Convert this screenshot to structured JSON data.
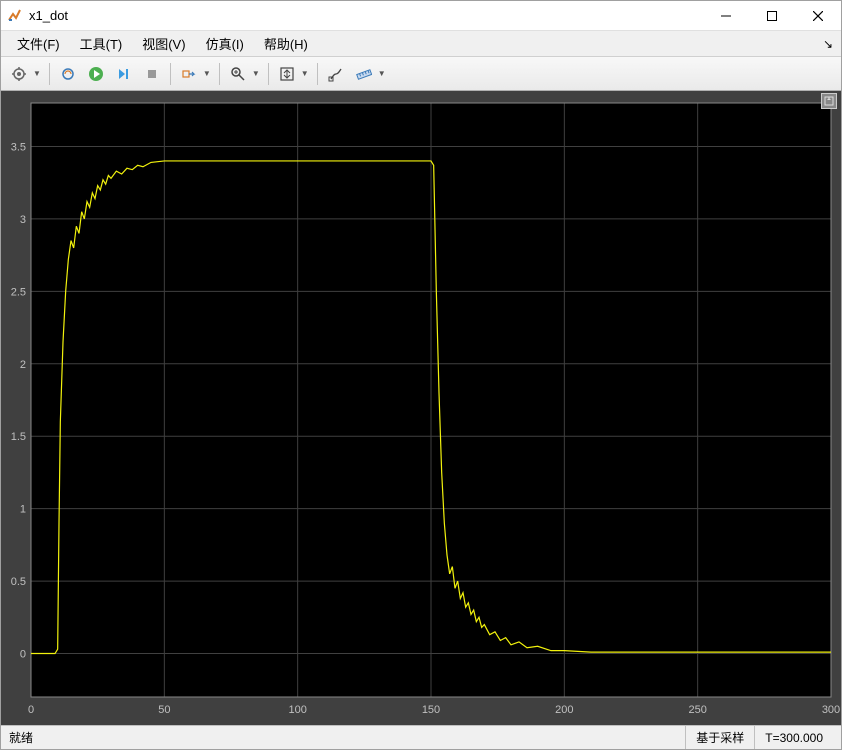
{
  "window": {
    "title": "x1_dot"
  },
  "menu": {
    "items": [
      "文件(F)",
      "工具(T)",
      "视图(V)",
      "仿真(I)",
      "帮助(H)"
    ]
  },
  "toolbar": {
    "icons": [
      "settings",
      "simdata",
      "run",
      "step",
      "stop",
      "sep",
      "trigger",
      "sep",
      "zoom",
      "sep",
      "autoscale",
      "sep",
      "cursor",
      "ruler"
    ]
  },
  "chart": {
    "type": "line",
    "background_color": "#000000",
    "grid_color": "#404040",
    "axis_color": "#888888",
    "tick_color": "#c0c0c0",
    "tick_fontsize": 11,
    "line_color": "#f2f20d",
    "line_width": 1.2,
    "xlim": [
      0,
      300
    ],
    "ylim": [
      -0.3,
      3.8
    ],
    "xticks": [
      0,
      50,
      100,
      150,
      200,
      250,
      300
    ],
    "yticks": [
      0,
      0.5,
      1,
      1.5,
      2,
      2.5,
      3,
      3.5
    ],
    "series": [
      {
        "x": 0,
        "y": 0
      },
      {
        "x": 9,
        "y": 0
      },
      {
        "x": 10,
        "y": 0.03
      },
      {
        "x": 10.5,
        "y": 0.9
      },
      {
        "x": 11,
        "y": 1.6
      },
      {
        "x": 12,
        "y": 2.15
      },
      {
        "x": 13,
        "y": 2.5
      },
      {
        "x": 14,
        "y": 2.72
      },
      {
        "x": 15,
        "y": 2.85
      },
      {
        "x": 16,
        "y": 2.8
      },
      {
        "x": 17,
        "y": 2.95
      },
      {
        "x": 18,
        "y": 2.9
      },
      {
        "x": 19,
        "y": 3.05
      },
      {
        "x": 20,
        "y": 3.0
      },
      {
        "x": 21,
        "y": 3.12
      },
      {
        "x": 22,
        "y": 3.08
      },
      {
        "x": 23,
        "y": 3.18
      },
      {
        "x": 24,
        "y": 3.14
      },
      {
        "x": 25,
        "y": 3.23
      },
      {
        "x": 26,
        "y": 3.2
      },
      {
        "x": 27,
        "y": 3.27
      },
      {
        "x": 28,
        "y": 3.24
      },
      {
        "x": 29,
        "y": 3.3
      },
      {
        "x": 30,
        "y": 3.28
      },
      {
        "x": 32,
        "y": 3.33
      },
      {
        "x": 34,
        "y": 3.31
      },
      {
        "x": 36,
        "y": 3.35
      },
      {
        "x": 38,
        "y": 3.34
      },
      {
        "x": 40,
        "y": 3.37
      },
      {
        "x": 42,
        "y": 3.36
      },
      {
        "x": 45,
        "y": 3.39
      },
      {
        "x": 50,
        "y": 3.4
      },
      {
        "x": 150,
        "y": 3.4
      },
      {
        "x": 151,
        "y": 3.37
      },
      {
        "x": 152,
        "y": 2.5
      },
      {
        "x": 153,
        "y": 1.8
      },
      {
        "x": 154,
        "y": 1.25
      },
      {
        "x": 155,
        "y": 0.9
      },
      {
        "x": 156,
        "y": 0.68
      },
      {
        "x": 157,
        "y": 0.55
      },
      {
        "x": 158,
        "y": 0.6
      },
      {
        "x": 159,
        "y": 0.45
      },
      {
        "x": 160,
        "y": 0.5
      },
      {
        "x": 161,
        "y": 0.38
      },
      {
        "x": 162,
        "y": 0.42
      },
      {
        "x": 163,
        "y": 0.32
      },
      {
        "x": 164,
        "y": 0.35
      },
      {
        "x": 165,
        "y": 0.27
      },
      {
        "x": 166,
        "y": 0.3
      },
      {
        "x": 167,
        "y": 0.22
      },
      {
        "x": 168,
        "y": 0.25
      },
      {
        "x": 169,
        "y": 0.18
      },
      {
        "x": 170,
        "y": 0.2
      },
      {
        "x": 172,
        "y": 0.13
      },
      {
        "x": 174,
        "y": 0.15
      },
      {
        "x": 176,
        "y": 0.09
      },
      {
        "x": 178,
        "y": 0.11
      },
      {
        "x": 180,
        "y": 0.06
      },
      {
        "x": 183,
        "y": 0.08
      },
      {
        "x": 186,
        "y": 0.04
      },
      {
        "x": 190,
        "y": 0.05
      },
      {
        "x": 195,
        "y": 0.02
      },
      {
        "x": 200,
        "y": 0.02
      },
      {
        "x": 210,
        "y": 0.01
      },
      {
        "x": 300,
        "y": 0.01
      }
    ]
  },
  "status": {
    "ready": "就绪",
    "sample": "基于采样",
    "time": "T=300.000"
  }
}
